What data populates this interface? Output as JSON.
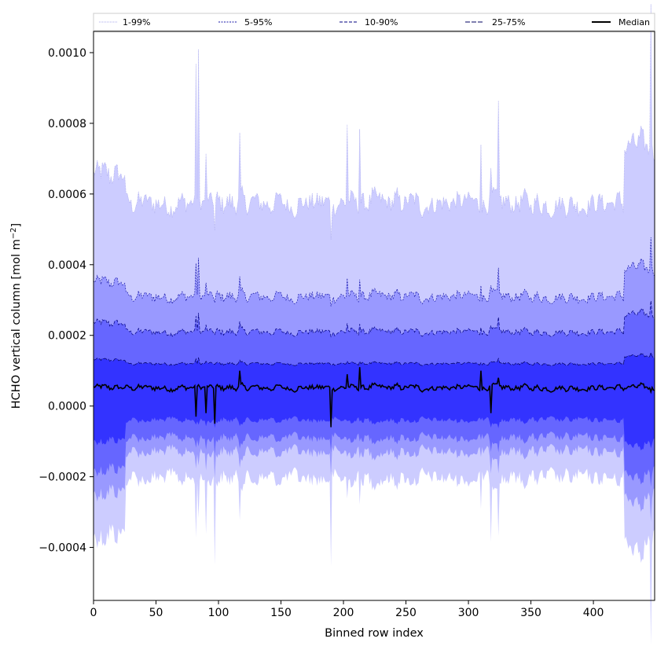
{
  "chart_data": {
    "type": "area",
    "xlabel": "Binned row index",
    "ylabel_main": "HCHO vertical column [mol m",
    "ylabel_sup": "−2",
    "ylabel_close": "]",
    "xlim": [
      0,
      449
    ],
    "ylim": [
      -0.00055,
      0.00106
    ],
    "x_ticks": [
      0,
      50,
      100,
      150,
      200,
      250,
      300,
      350,
      400
    ],
    "x_tick_labels": [
      "0",
      "50",
      "100",
      "150",
      "200",
      "250",
      "300",
      "350",
      "400"
    ],
    "y_ticks": [
      -0.0004,
      -0.0002,
      0.0,
      0.0002,
      0.0004,
      0.0006,
      0.0008,
      0.001
    ],
    "y_tick_labels": [
      "−0.0004",
      "−0.0002",
      "0.0000",
      "0.0002",
      "0.0004",
      "0.0006",
      "0.0008",
      "0.0010"
    ],
    "grid": false,
    "legend_position": "top",
    "n_rows": 450,
    "bands": [
      {
        "name": "1-99%",
        "lower": -0.000205,
        "upper": 0.000575,
        "fill": "#ccccff",
        "line": "#aaaaee",
        "dash": "1,1"
      },
      {
        "name": "5-95%",
        "lower": -0.00013,
        "upper": 0.00031,
        "fill": "#9999ff",
        "line": "#1a1aaa",
        "dash": "2,1.5"
      },
      {
        "name": "10-90%",
        "lower": -9e-05,
        "upper": 0.00021,
        "fill": "#6666ff",
        "line": "#000080",
        "dash": "4,2"
      },
      {
        "name": "25-75%",
        "lower": -4e-05,
        "upper": 0.00012,
        "fill": "#3333ff",
        "line": "#000060",
        "dash": "6,2"
      }
    ],
    "median": {
      "name": "Median",
      "baseline": 5.2e-05,
      "color": "#000000"
    },
    "spikes": [
      {
        "x": 82,
        "upper": 0.00098,
        "lower": -0.00038,
        "median": -3e-05
      },
      {
        "x": 84,
        "upper": 0.00098,
        "lower": -0.0003,
        "median": 6e-05
      },
      {
        "x": 90,
        "upper": 0.00069,
        "lower": -0.00034,
        "median": -2e-05
      },
      {
        "x": 97,
        "upper": 0.00049,
        "lower": -0.00044,
        "median": -5e-05
      },
      {
        "x": 117,
        "upper": 0.00073,
        "lower": -0.00029,
        "median": 0.0001
      },
      {
        "x": 190,
        "upper": 0.00048,
        "lower": -0.00047,
        "median": -6e-05
      },
      {
        "x": 203,
        "upper": 0.00081,
        "lower": -0.00027,
        "median": 9e-05
      },
      {
        "x": 213,
        "upper": 0.0008,
        "lower": -0.00029,
        "median": 0.00011
      },
      {
        "x": 310,
        "upper": 0.00079,
        "lower": -0.00033,
        "median": 0.0001
      },
      {
        "x": 318,
        "upper": 0.00064,
        "lower": -0.00035,
        "median": -2e-05
      },
      {
        "x": 324,
        "upper": 0.0008,
        "lower": -0.00032,
        "median": 8e-05
      },
      {
        "x": 446,
        "upper": 0.00093,
        "lower": -0.00041,
        "median": 4e-05
      }
    ],
    "left_edge_bump": {
      "from": 0,
      "to": 25,
      "upper": 0.00069,
      "lower": -0.00044
    },
    "right_edge_bump": {
      "from": 425,
      "to": 449,
      "upper": 0.00075,
      "lower": -0.00043
    }
  }
}
